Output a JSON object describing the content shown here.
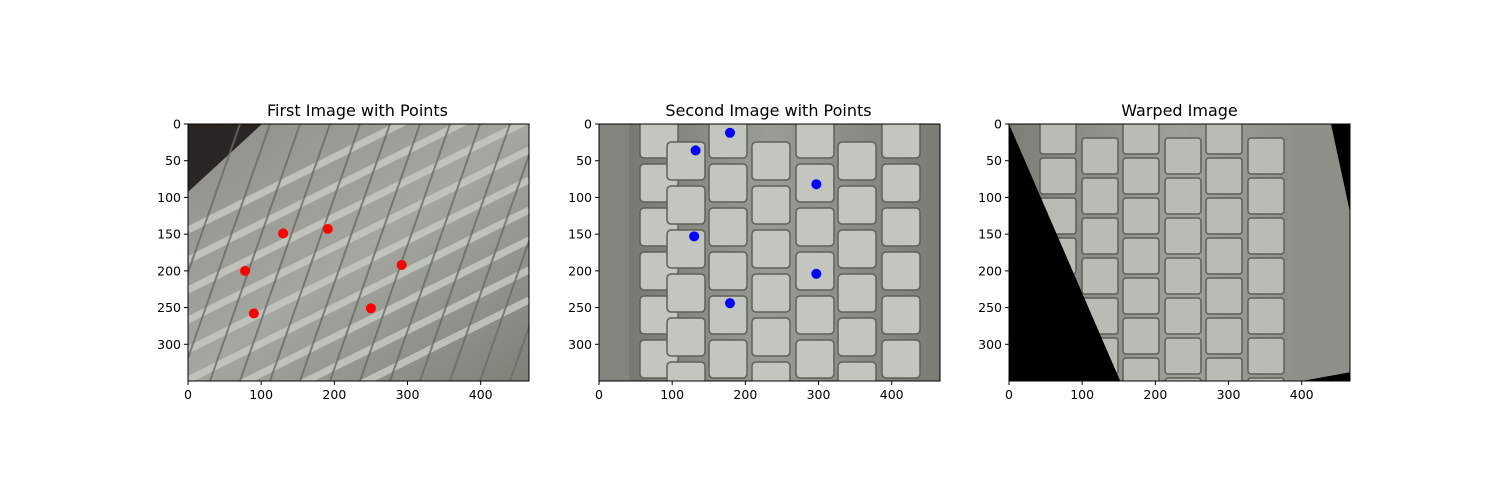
{
  "chart_data": [
    {
      "type": "scatter",
      "title": "First Image with Points",
      "xlabel": "",
      "ylabel": "",
      "xlim": [
        0,
        466
      ],
      "ylim": [
        350,
        0
      ],
      "xticks": [
        "0",
        "100",
        "200",
        "300",
        "400"
      ],
      "yticks": [
        "0",
        "50",
        "100",
        "150",
        "200",
        "250",
        "300"
      ],
      "grid": false,
      "point_color": "#ff0000",
      "background": "keyboard-photo",
      "points": [
        {
          "x": 130,
          "y": 149
        },
        {
          "x": 191,
          "y": 143
        },
        {
          "x": 78,
          "y": 200
        },
        {
          "x": 292,
          "y": 192
        },
        {
          "x": 90,
          "y": 258
        },
        {
          "x": 250,
          "y": 251
        }
      ]
    },
    {
      "type": "scatter",
      "title": "Second Image with Points",
      "xlabel": "",
      "ylabel": "",
      "xlim": [
        0,
        466
      ],
      "ylim": [
        350,
        0
      ],
      "xticks": [
        "0",
        "100",
        "200",
        "300",
        "400"
      ],
      "yticks": [
        "0",
        "50",
        "100",
        "150",
        "200",
        "250",
        "300"
      ],
      "grid": false,
      "point_color": "#0000ff",
      "background": "keyboard-photo",
      "points": [
        {
          "x": 179,
          "y": 12
        },
        {
          "x": 132,
          "y": 36
        },
        {
          "x": 297,
          "y": 82
        },
        {
          "x": 130,
          "y": 153
        },
        {
          "x": 297,
          "y": 204
        },
        {
          "x": 179,
          "y": 244
        }
      ]
    },
    {
      "type": "image",
      "title": "Warped Image",
      "xlabel": "",
      "ylabel": "",
      "xlim": [
        0,
        466
      ],
      "ylim": [
        350,
        0
      ],
      "xticks": [
        "0",
        "100",
        "200",
        "300",
        "400"
      ],
      "yticks": [
        "0",
        "50",
        "100",
        "150",
        "200",
        "250",
        "300"
      ],
      "grid": false,
      "background": "warped-keyboard-photo",
      "black_regions": [
        [
          [
            0,
            0
          ],
          [
            0,
            350
          ],
          [
            152,
            350
          ]
        ],
        [
          [
            440,
            0
          ],
          [
            466,
            0
          ],
          [
            466,
            120
          ]
        ],
        [
          [
            400,
            350
          ],
          [
            466,
            338
          ],
          [
            466,
            350
          ]
        ]
      ]
    }
  ]
}
